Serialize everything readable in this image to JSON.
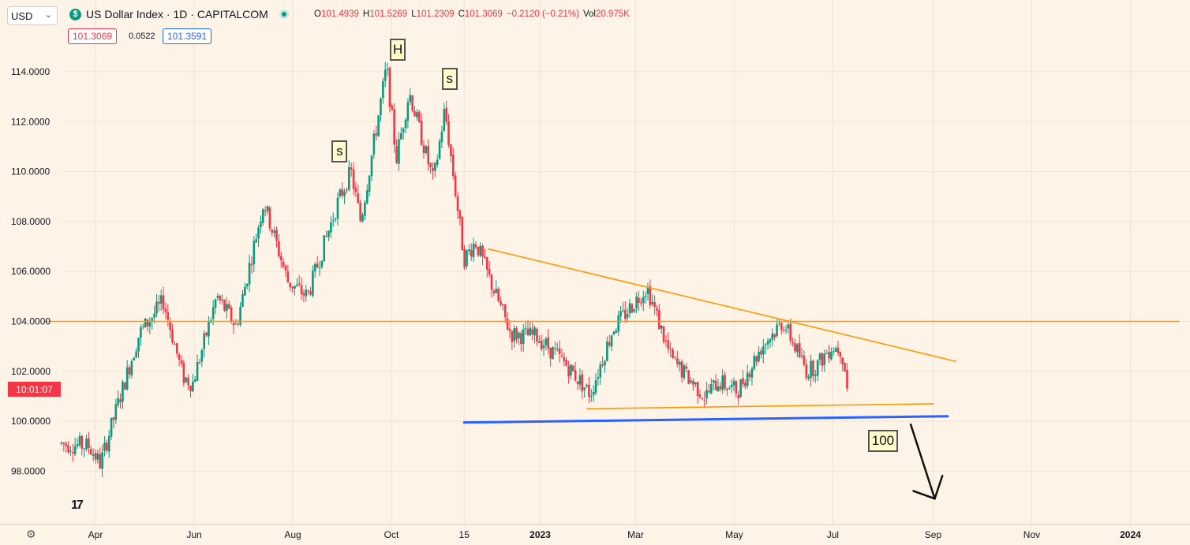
{
  "header": {
    "symbol_select": "USD",
    "title": "US Dollar Index · 1D · CAPITALCOM",
    "ohlc": [
      {
        "k": "O",
        "v": "101.4939"
      },
      {
        "k": "H",
        "v": "101.5269"
      },
      {
        "k": "L",
        "v": "101.2309"
      },
      {
        "k": "C",
        "v": "101.3069"
      },
      {
        "k": "",
        "v": "−0.2120 (−0.21%)"
      },
      {
        "k": "Vol",
        "v": "20.975K"
      }
    ],
    "sell_price": "101.3069",
    "spread": "0.0522",
    "buy_price": "101.3591"
  },
  "countdown": "10:01:07",
  "colors": {
    "up": "#089981",
    "down": "#f23645",
    "trend": "#ff9800",
    "support": "#2962ff",
    "bg": "#fdf3e6"
  },
  "chart_data": {
    "type": "candlestick",
    "ylim": [
      96.5,
      115.5
    ],
    "y_ticks": [
      "114.0000",
      "112.0000",
      "110.0000",
      "108.0000",
      "106.0000",
      "104.0000",
      "102.0000",
      "100.0000",
      "98.0000"
    ],
    "y_tick_values": [
      114,
      112,
      110,
      108,
      106,
      104,
      102,
      100,
      98
    ],
    "x_ticks": [
      "Apr",
      "Jun",
      "Aug",
      "Oct",
      "15",
      "2023",
      "Mar",
      "May",
      "Jul",
      "Sep",
      "Nov",
      "2024"
    ],
    "x_tick_dates": [
      "2022-04-01",
      "2022-06-01",
      "2022-08-01",
      "2022-10-01",
      "2022-11-15",
      "2023-01-01",
      "2023-03-01",
      "2023-05-01",
      "2023-07-01",
      "2023-09-01",
      "2023-11-01",
      "2024-01-01"
    ],
    "series": [
      {
        "anchors": [
          [
            "2022-03-11",
            99.1
          ],
          [
            "2022-03-28",
            99.0
          ],
          [
            "2022-04-04",
            98.3
          ],
          [
            "2022-04-14",
            100.5
          ],
          [
            "2022-04-28",
            103.5
          ],
          [
            "2022-05-13",
            104.8
          ],
          [
            "2022-05-25",
            101.8
          ],
          [
            "2022-05-31",
            101.5
          ],
          [
            "2022-06-15",
            105.0
          ],
          [
            "2022-06-27",
            103.8
          ],
          [
            "2022-07-14",
            108.8
          ],
          [
            "2022-07-29",
            105.6
          ],
          [
            "2022-08-10",
            105.0
          ],
          [
            "2022-08-29",
            108.8
          ],
          [
            "2022-09-06",
            110.0
          ],
          [
            "2022-09-12",
            108.0
          ],
          [
            "2022-09-28",
            114.2
          ],
          [
            "2022-10-04",
            110.5
          ],
          [
            "2022-10-12",
            113.2
          ],
          [
            "2022-10-27",
            109.6
          ],
          [
            "2022-11-03",
            112.5
          ],
          [
            "2022-11-15",
            106.5
          ],
          [
            "2022-11-22",
            107.2
          ],
          [
            "2022-11-30",
            105.8
          ],
          [
            "2022-12-14",
            103.5
          ],
          [
            "2022-12-30",
            103.4
          ],
          [
            "2023-01-18",
            102.2
          ],
          [
            "2023-02-01",
            101.1
          ],
          [
            "2023-02-15",
            103.7
          ],
          [
            "2023-03-02",
            104.9
          ],
          [
            "2023-03-08",
            105.4
          ],
          [
            "2023-03-23",
            102.5
          ],
          [
            "2023-04-13",
            101.0
          ],
          [
            "2023-04-21",
            101.6
          ],
          [
            "2023-05-03",
            101.2
          ],
          [
            "2023-05-18",
            103.0
          ],
          [
            "2023-05-31",
            104.0
          ],
          [
            "2023-06-15",
            102.0
          ],
          [
            "2023-06-22",
            102.3
          ],
          [
            "2023-06-30",
            103.0
          ],
          [
            "2023-07-06",
            102.9
          ],
          [
            "2023-07-11",
            101.3
          ]
        ]
      }
    ],
    "trendlines": [
      {
        "from": [
          "2022-11-30",
          106.9
        ],
        "to": [
          "2023-09-15",
          102.4
        ],
        "color": "trend"
      },
      {
        "from": [
          "2022-03-01",
          104.0
        ],
        "to": [
          "2024-01-31",
          104.0
        ],
        "color": "trend"
      },
      {
        "from": [
          "2023-01-30",
          100.5
        ],
        "to": [
          "2023-09-01",
          100.7
        ],
        "color": "trend"
      },
      {
        "from": [
          "2022-11-15",
          99.95
        ],
        "to": [
          "2023-09-10",
          100.2
        ],
        "color": "support",
        "width": 3
      }
    ],
    "annotations": [
      {
        "text": "s",
        "date": "2022-08-30",
        "y": 110.8
      },
      {
        "text": "H",
        "date": "2022-10-05",
        "y": 114.9
      },
      {
        "text": "s",
        "date": "2022-11-06",
        "y": 113.7
      },
      {
        "text": "100",
        "date": "2023-08-01",
        "y": 99.2
      }
    ],
    "arrow": {
      "from": [
        "2023-08-18",
        99.9
      ],
      "to": [
        "2023-09-02",
        96.9
      ]
    },
    "current_price": 101.3069
  }
}
